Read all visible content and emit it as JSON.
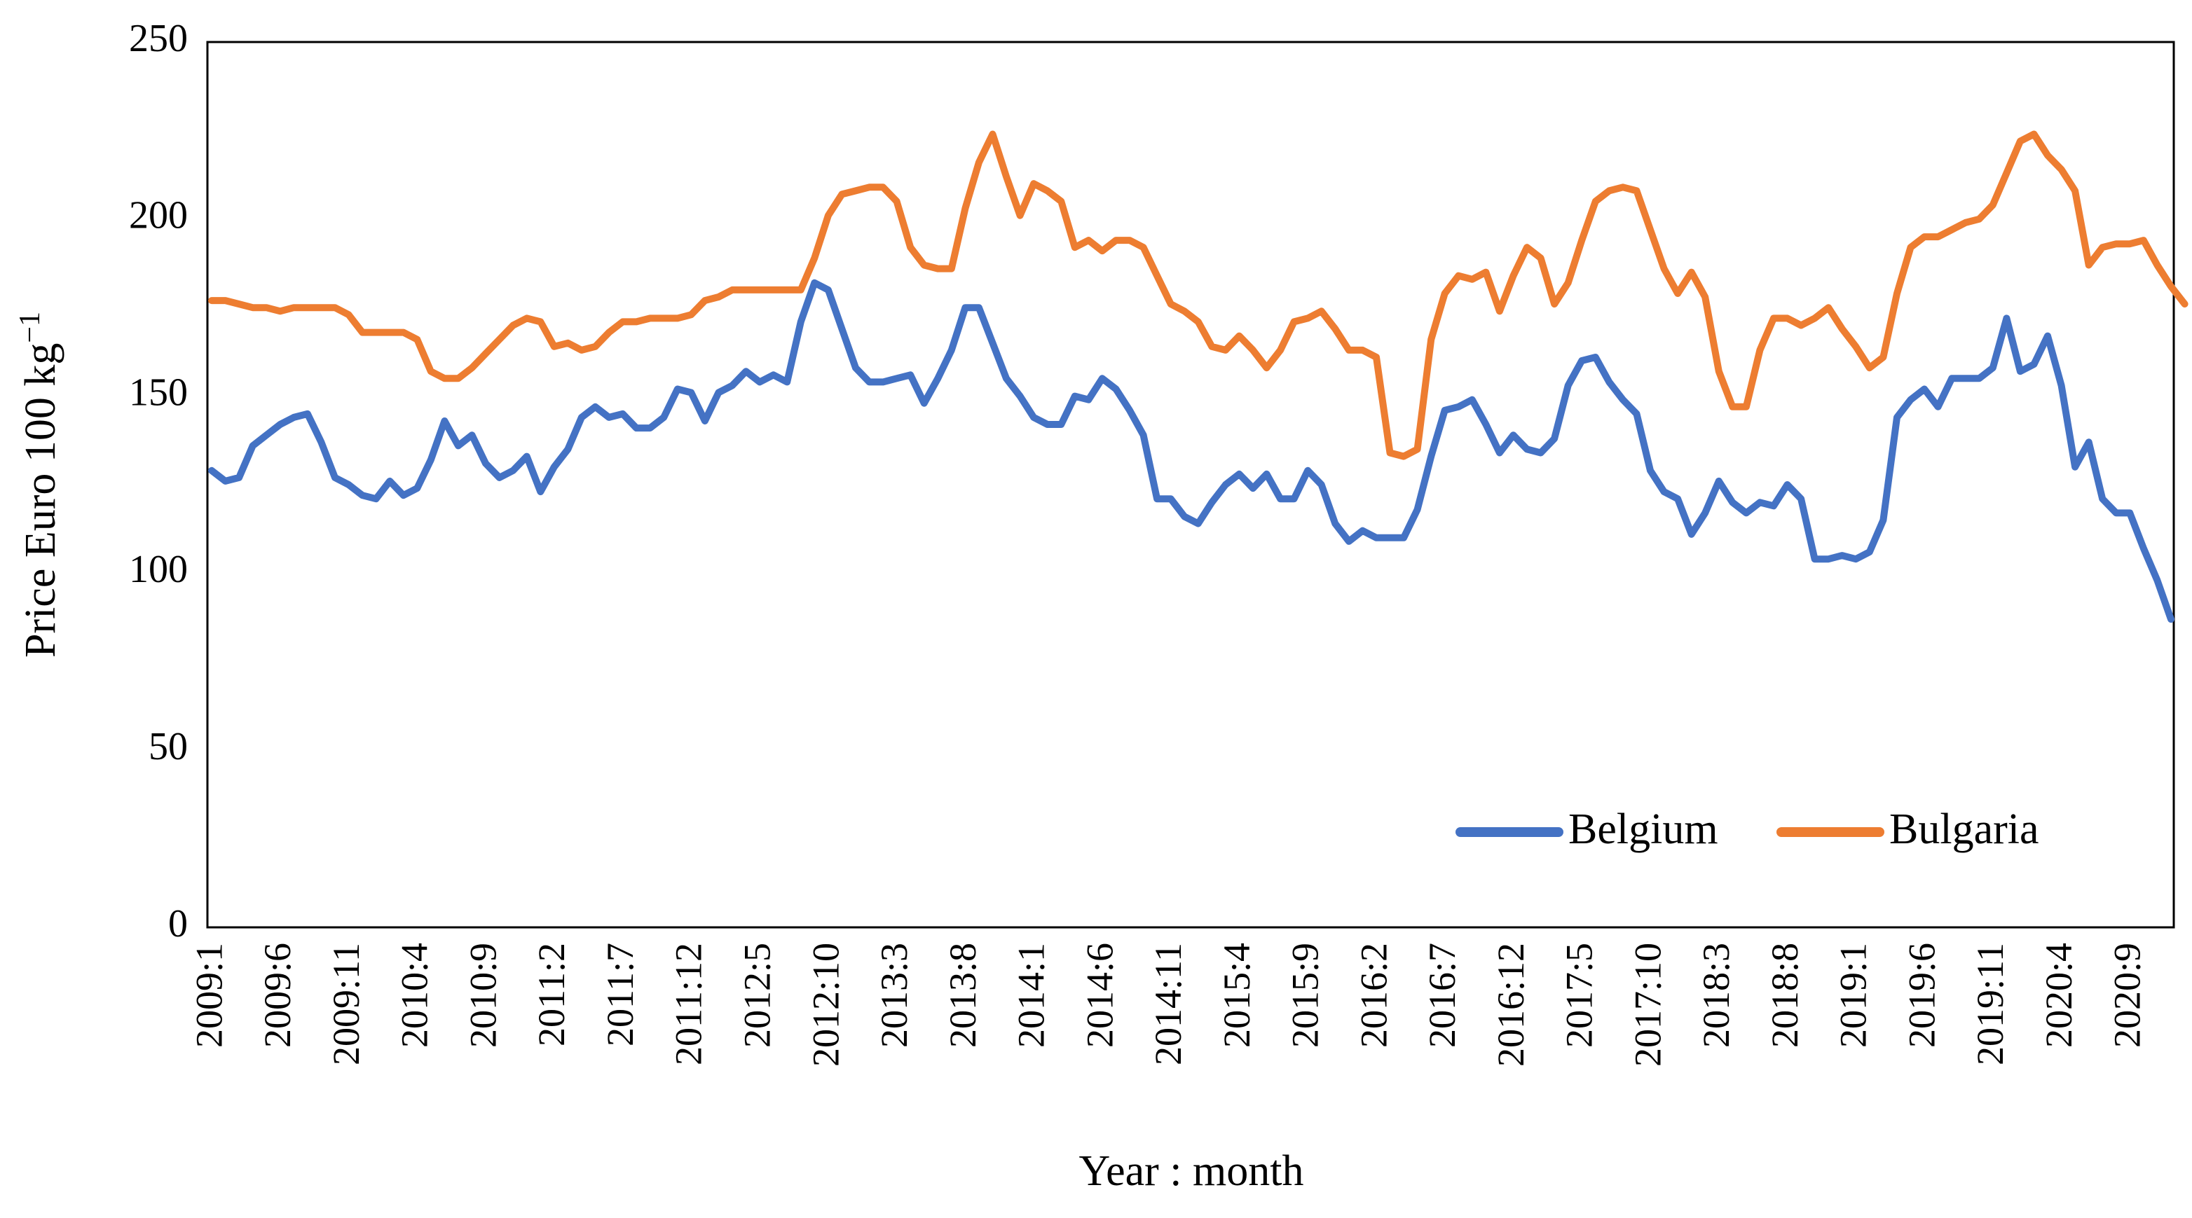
{
  "chart_data": {
    "type": "line",
    "title": "",
    "xlabel": "Year : month",
    "ylabel": "Price Euro 100 kg",
    "ylabel_superscript": "−1",
    "ylim": [
      0,
      250
    ],
    "yticks": [
      0,
      50,
      100,
      150,
      200,
      250
    ],
    "grid": false,
    "legend_position": "bottom-right",
    "xtick_labels": [
      "2009:1",
      "2009:6",
      "2009:11",
      "2010:4",
      "2010:9",
      "2011:2",
      "2011:7",
      "2011:12",
      "2012:5",
      "2012:10",
      "2013:3",
      "2013:8",
      "2014:1",
      "2014:6",
      "2014:11",
      "2015:4",
      "2015:9",
      "2016:2",
      "2016:7",
      "2016:12",
      "2017:5",
      "2017:10",
      "2018:3",
      "2018:8",
      "2019:1",
      "2019:6",
      "2019:11",
      "2020:4",
      "2020:9"
    ],
    "series": [
      {
        "name": "Belgium",
        "color": "#4472C4",
        "values": [
          129,
          126,
          127,
          136,
          139,
          142,
          144,
          145,
          137,
          127,
          125,
          122,
          121,
          126,
          122,
          124,
          132,
          143,
          136,
          139,
          131,
          127,
          129,
          133,
          123,
          130,
          135,
          144,
          147,
          144,
          145,
          141,
          141,
          144,
          152,
          151,
          143,
          151,
          153,
          157,
          154,
          156,
          154,
          171,
          182,
          180,
          169,
          158,
          154,
          154,
          155,
          156,
          148,
          155,
          163,
          175,
          175,
          165,
          155,
          150,
          144,
          142,
          142,
          150,
          149,
          155,
          152,
          146,
          139,
          121,
          121,
          116,
          114,
          120,
          125,
          128,
          124,
          128,
          121,
          121,
          129,
          125,
          114,
          109,
          112,
          110,
          110,
          110,
          118,
          133,
          146,
          147,
          149,
          142,
          134,
          139,
          135,
          134,
          138,
          153,
          160,
          161,
          154,
          149,
          145,
          129,
          123,
          121,
          111,
          117,
          126,
          120,
          117,
          120,
          119,
          125,
          121,
          104,
          104,
          105,
          104,
          106,
          115,
          144,
          149,
          152,
          147,
          155,
          155,
          155,
          158,
          172,
          157,
          159,
          167,
          153,
          130,
          137,
          121,
          117,
          117,
          107,
          98,
          87
        ]
      },
      {
        "name": "Bulgaria",
        "color": "#ED7D31",
        "values": [
          177,
          177,
          176,
          175,
          175,
          174,
          175,
          175,
          175,
          175,
          173,
          168,
          168,
          168,
          168,
          166,
          157,
          155,
          155,
          158,
          162,
          166,
          170,
          172,
          171,
          164,
          165,
          163,
          164,
          168,
          171,
          171,
          172,
          172,
          172,
          173,
          177,
          178,
          180,
          180,
          180,
          180,
          180,
          180,
          189,
          201,
          207,
          208,
          209,
          209,
          205,
          192,
          187,
          186,
          186,
          203,
          216,
          224,
          212,
          201,
          210,
          208,
          205,
          192,
          194,
          191,
          194,
          194,
          192,
          184,
          176,
          174,
          171,
          164,
          163,
          167,
          163,
          158,
          163,
          171,
          172,
          174,
          169,
          163,
          163,
          161,
          134,
          133,
          135,
          166,
          179,
          184,
          183,
          185,
          174,
          184,
          192,
          189,
          176,
          182,
          194,
          205,
          208,
          209,
          208,
          197,
          186,
          179,
          185,
          178,
          157,
          147,
          147,
          163,
          172,
          172,
          170,
          172,
          175,
          169,
          164,
          158,
          161,
          179,
          192,
          195,
          195,
          197,
          199,
          200,
          204,
          213,
          222,
          224,
          218,
          214,
          208,
          187,
          192,
          193,
          193,
          194,
          187,
          181,
          176
        ]
      }
    ]
  }
}
